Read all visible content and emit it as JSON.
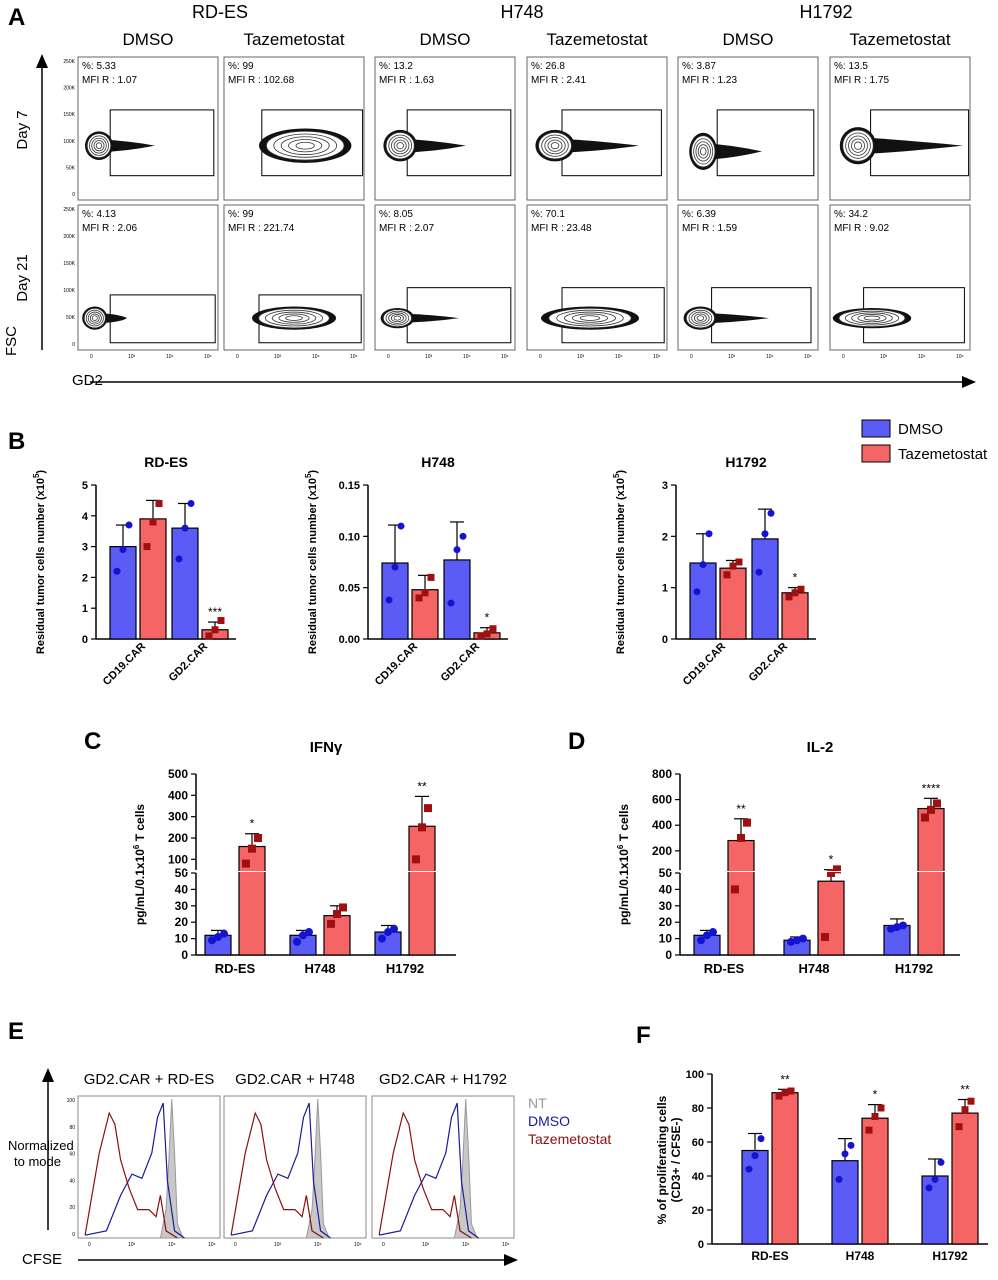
{
  "panelA": {
    "letter": "A",
    "groups": [
      "RD-ES",
      "H748",
      "H1792"
    ],
    "conditions": [
      "DMSO",
      "Tazemetostat",
      "DMSO",
      "Tazemetostat",
      "DMSO",
      "Tazemetostat"
    ],
    "row_labels": [
      "Day 7",
      "Day 21"
    ],
    "y_axis": "FSC",
    "x_axis": "GD2",
    "y_ticks_day7": [
      "250K",
      "200K",
      "150K",
      "100K",
      "50K",
      "0"
    ],
    "y_ticks_day21": [
      "250K",
      "200K",
      "150K",
      "100K",
      "50K",
      "0"
    ],
    "x_ticks": [
      "0",
      "10³",
      "10⁴",
      "10⁵"
    ],
    "stats": [
      [
        {
          "pct": "%: 5.33",
          "mfi": "MFI R : 1.07"
        },
        {
          "pct": "%: 99",
          "mfi": "MFI R : 102.68"
        },
        {
          "pct": "%: 13.2",
          "mfi": "MFI R : 1.63"
        },
        {
          "pct": "%: 26.8",
          "mfi": "MFI R : 2.41"
        },
        {
          "pct": "%: 3.87",
          "mfi": "MFI R : 1.23"
        },
        {
          "pct": "%: 13.5",
          "mfi": "MFI R : 1.75"
        }
      ],
      [
        {
          "pct": "%: 4.13",
          "mfi": "MFI R : 2.06"
        },
        {
          "pct": "%: 99",
          "mfi": "MFI R : 221.74"
        },
        {
          "pct": "%: 8.05",
          "mfi": "MFI R : 2.07"
        },
        {
          "pct": "%: 70.1",
          "mfi": "MFI R : 23.48"
        },
        {
          "pct": "%: 6.39",
          "mfi": "MFI R : 1.59"
        },
        {
          "pct": "%: 34.2",
          "mfi": "MFI R : 9.02"
        }
      ]
    ]
  },
  "panelB": {
    "letter": "B",
    "legend": [
      {
        "name": "DMSO",
        "color": "#5b5bf5"
      },
      {
        "name": "Tazemetostat",
        "color": "#f56565"
      }
    ],
    "ylabel_main": "Residual tumor cells number (x10",
    "ylabel_sup": "5",
    "ylabel_end": ")"
  },
  "panelC": {
    "letter": "C",
    "title": "IFNγ",
    "ylabel_pre": "pg/mL/0.1x10",
    "ylabel_sup": "6",
    "ylabel_post": " T cells"
  },
  "panelD": {
    "letter": "D",
    "title": "IL-2",
    "ylabel_pre": "pg/mL/0.1x10",
    "ylabel_sup": "6",
    "ylabel_post": " T cells"
  },
  "panelE": {
    "letter": "E",
    "titles": [
      "GD2.CAR + RD-ES",
      "GD2.CAR + H748",
      "GD2.CAR + H1792"
    ],
    "y_axis": [
      "Normalized",
      "to mode"
    ],
    "x_axis": "CFSE",
    "legend": [
      {
        "name": "NT",
        "color": "#9a9a9a"
      },
      {
        "name": "DMSO",
        "color": "#1a1a9a"
      },
      {
        "name": "Tazemetostat",
        "color": "#8a1010"
      }
    ],
    "y_ticks": [
      "100",
      "80",
      "60",
      "40",
      "20",
      "0"
    ],
    "x_ticks": [
      "0",
      "10³",
      "10⁴",
      "10⁵"
    ]
  },
  "panelF": {
    "letter": "F",
    "ylabel_1": "% of proliferating cells",
    "ylabel_2": "(CD3+ / CFSE-)"
  },
  "colors": {
    "dmso_bar": "#5b5bf5",
    "taze_bar": "#f56565",
    "dmso_point": "#1414d0",
    "taze_point": "#a01010"
  },
  "chart_data": [
    {
      "type": "bar",
      "title": "RD-ES",
      "categories": [
        "CD19.CAR",
        "GD2.CAR"
      ],
      "ylabel": "Residual tumor cells number (x10⁵)",
      "ylim": [
        0,
        5
      ],
      "yticks": [
        0,
        1,
        2,
        3,
        4,
        5
      ],
      "series": [
        {
          "name": "DMSO",
          "values": [
            3.0,
            3.6
          ],
          "errors": [
            0.7,
            0.8
          ],
          "points": [
            [
              2.2,
              2.9,
              3.7
            ],
            [
              2.6,
              3.6,
              4.4
            ]
          ]
        },
        {
          "name": "Tazemetostat",
          "values": [
            3.9,
            0.3
          ],
          "errors": [
            0.6,
            0.25
          ],
          "points": [
            [
              3.0,
              3.8,
              4.4
            ],
            [
              0.1,
              0.3,
              0.6
            ]
          ]
        }
      ],
      "annotations": [
        {
          "category": "GD2.CAR",
          "series": "Tazemetostat",
          "text": "***"
        }
      ]
    },
    {
      "type": "bar",
      "title": "H748",
      "categories": [
        "CD19.CAR",
        "GD2.CAR"
      ],
      "ylabel": "Residual tumor cells number (x10⁵)",
      "ylim": [
        0,
        0.15
      ],
      "yticks": [
        0.0,
        0.05,
        0.1,
        0.15
      ],
      "series": [
        {
          "name": "DMSO",
          "values": [
            0.074,
            0.077
          ],
          "errors": [
            0.037,
            0.037
          ],
          "points": [
            [
              0.038,
              0.07,
              0.11
            ],
            [
              0.035,
              0.087,
              0.1
            ]
          ]
        },
        {
          "name": "Tazemetostat",
          "values": [
            0.048,
            0.006
          ],
          "errors": [
            0.014,
            0.005
          ],
          "points": [
            [
              0.04,
              0.045,
              0.06
            ],
            [
              0.003,
              0.005,
              0.01
            ]
          ]
        }
      ],
      "annotations": [
        {
          "category": "GD2.CAR",
          "series": "Tazemetostat",
          "text": "*"
        }
      ]
    },
    {
      "type": "bar",
      "title": "H1792",
      "categories": [
        "CD19.CAR",
        "GD2.CAR"
      ],
      "ylabel": "Residual tumor cells number (x10⁵)",
      "ylim": [
        0,
        3
      ],
      "yticks": [
        0,
        1,
        2,
        3
      ],
      "series": [
        {
          "name": "DMSO",
          "values": [
            1.48,
            1.95
          ],
          "errors": [
            0.57,
            0.58
          ],
          "points": [
            [
              0.92,
              1.45,
              2.05
            ],
            [
              1.3,
              2.05,
              2.45
            ]
          ]
        },
        {
          "name": "Tazemetostat",
          "values": [
            1.38,
            0.9
          ],
          "errors": [
            0.15,
            0.1
          ],
          "points": [
            [
              1.25,
              1.42,
              1.5
            ],
            [
              0.82,
              0.9,
              0.97
            ]
          ]
        }
      ],
      "annotations": [
        {
          "category": "GD2.CAR",
          "series": "Tazemetostat",
          "text": "*"
        }
      ]
    },
    {
      "type": "bar",
      "title": "IFNγ",
      "categories": [
        "RD-ES",
        "H748",
        "H1792"
      ],
      "ylabel": "pg/mL/0.1x10⁶ T cells",
      "axis_break": {
        "lower": [
          0,
          50
        ],
        "upper": [
          50,
          500
        ]
      },
      "yticks_lower": [
        0,
        10,
        20,
        30,
        40,
        50
      ],
      "yticks_upper": [
        100,
        200,
        300,
        400,
        500
      ],
      "series": [
        {
          "name": "DMSO",
          "values": [
            12,
            12,
            14
          ],
          "errors": [
            3,
            3,
            4
          ],
          "points": [
            [
              9,
              11,
              13
            ],
            [
              8,
              12,
              14
            ],
            [
              10,
              14,
              16
            ]
          ]
        },
        {
          "name": "Tazemetostat",
          "values": [
            160,
            24,
            255
          ],
          "errors": [
            60,
            6,
            140
          ],
          "points": [
            [
              80,
              150,
              200
            ],
            [
              19,
              25,
              29
            ],
            [
              100,
              250,
              340
            ]
          ]
        }
      ],
      "annotations": [
        {
          "category": "RD-ES",
          "text": "*"
        },
        {
          "category": "H1792",
          "text": "**"
        }
      ]
    },
    {
      "type": "bar",
      "title": "IL-2",
      "categories": [
        "RD-ES",
        "H748",
        "H1792"
      ],
      "ylabel": "pg/mL/0.1x10⁶ T cells",
      "axis_break": {
        "lower": [
          0,
          50
        ],
        "upper": [
          50,
          800
        ]
      },
      "yticks_lower": [
        0,
        10,
        20,
        30,
        40,
        50
      ],
      "yticks_upper": [
        200,
        400,
        600,
        800
      ],
      "series": [
        {
          "name": "DMSO",
          "values": [
            12,
            9,
            18
          ],
          "errors": [
            3,
            2,
            4
          ],
          "points": [
            [
              9,
              12,
              14
            ],
            [
              8,
              9,
              10
            ],
            [
              16,
              17,
              18
            ]
          ]
        },
        {
          "name": "Tazemetostat",
          "values": [
            280,
            45,
            530
          ],
          "errors": [
            170,
            8,
            80
          ],
          "points": [
            [
              40,
              300,
              420
            ],
            [
              11,
              50,
              55
            ],
            [
              460,
              520,
              570
            ]
          ]
        }
      ],
      "annotations": [
        {
          "category": "RD-ES",
          "text": "**"
        },
        {
          "category": "H748",
          "text": "*"
        },
        {
          "category": "H1792",
          "text": "****"
        }
      ]
    },
    {
      "type": "bar",
      "title": "",
      "categories": [
        "RD-ES",
        "H748",
        "H1792"
      ],
      "ylabel": "% of proliferating cells (CD3+ / CFSE-)",
      "ylim": [
        0,
        100
      ],
      "yticks": [
        0,
        20,
        40,
        60,
        80,
        100
      ],
      "series": [
        {
          "name": "DMSO",
          "values": [
            55,
            49,
            40
          ],
          "errors": [
            10,
            13,
            10
          ],
          "points": [
            [
              44,
              52,
              62
            ],
            [
              38,
              53,
              58
            ],
            [
              33,
              38,
              48
            ]
          ]
        },
        {
          "name": "Tazemetostat",
          "values": [
            89,
            74,
            77
          ],
          "errors": [
            2,
            8,
            8
          ],
          "points": [
            [
              87,
              89,
              90
            ],
            [
              67,
              75,
              80
            ],
            [
              69,
              79,
              84
            ]
          ]
        }
      ],
      "annotations": [
        {
          "category": "RD-ES",
          "text": "**"
        },
        {
          "category": "H748",
          "text": "*"
        },
        {
          "category": "H1792",
          "text": "**"
        }
      ]
    }
  ]
}
